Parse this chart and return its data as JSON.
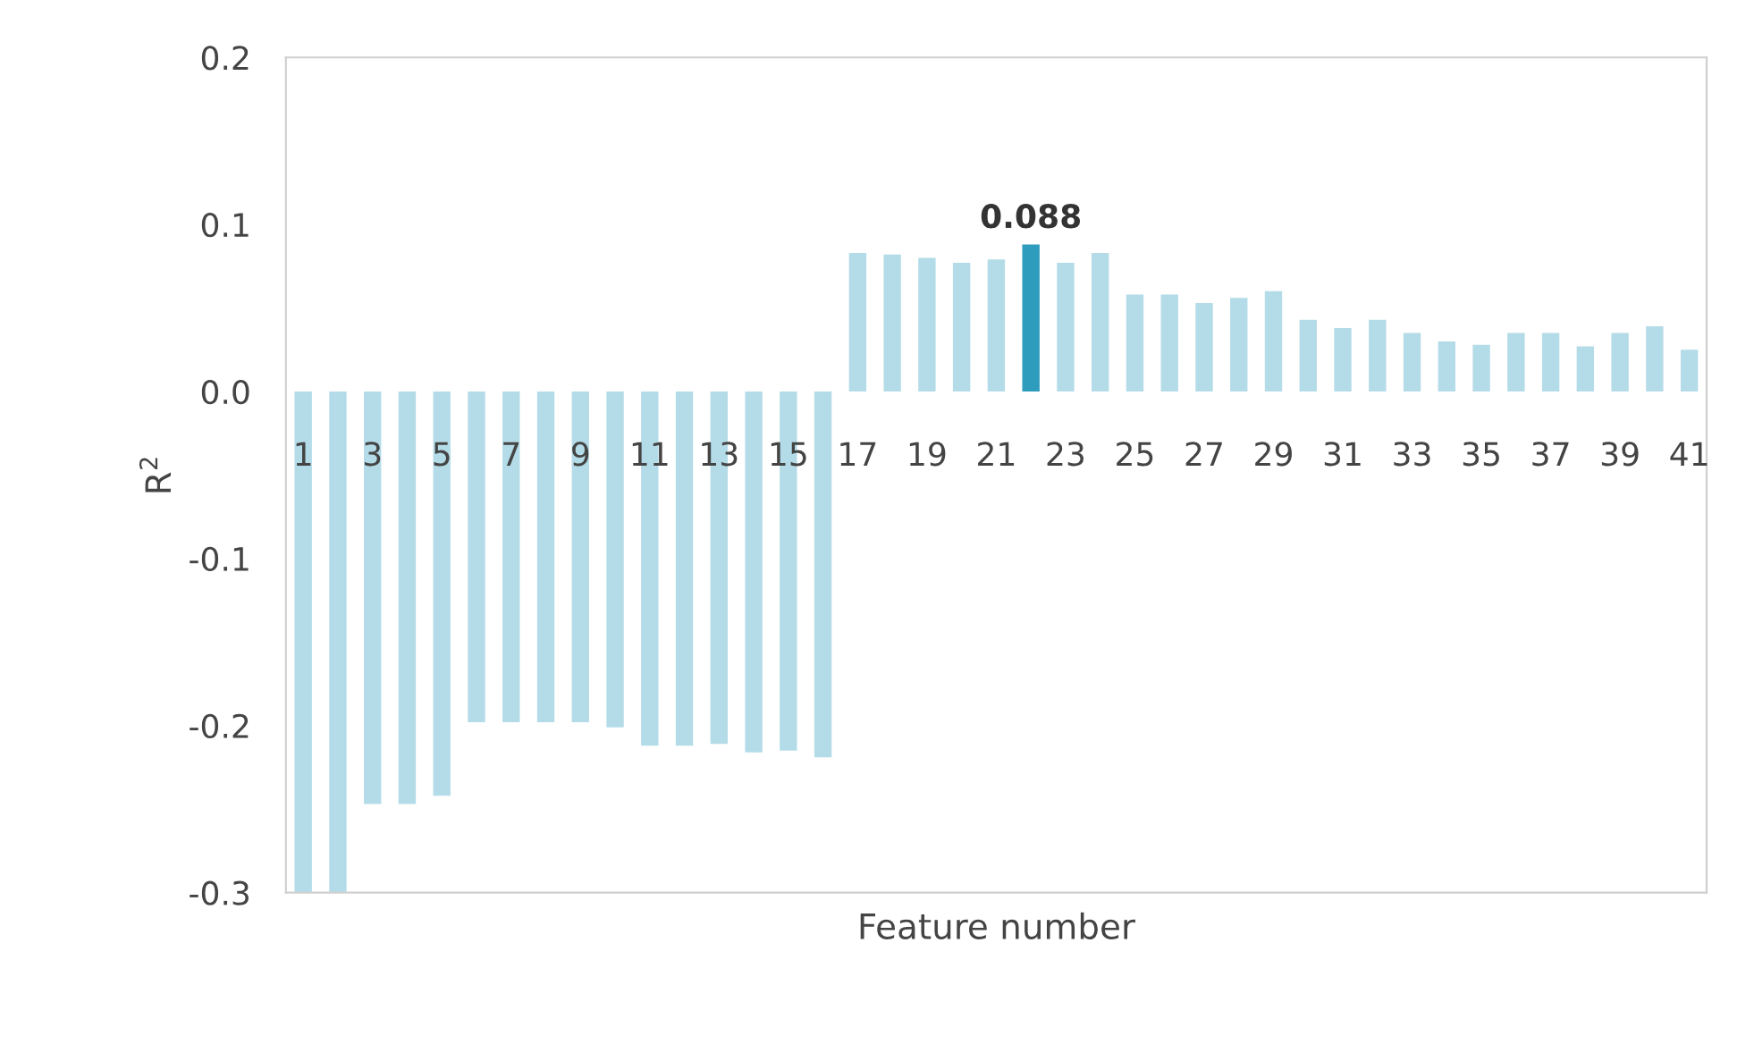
{
  "chart_data": {
    "type": "bar",
    "xlabel": "Feature number",
    "ylabel": "R$^{2}$",
    "categories": [
      "1",
      null,
      "3",
      null,
      "5",
      null,
      "7",
      null,
      "9",
      null,
      "11",
      null,
      "13",
      null,
      "15",
      null,
      "17",
      null,
      "19",
      null,
      "21",
      null,
      "23",
      null,
      "25",
      null,
      "27",
      null,
      "29",
      null,
      "31",
      null,
      "33",
      null,
      "35",
      null,
      "37",
      null,
      "39",
      null,
      "41"
    ],
    "values": [
      -0.3,
      -0.3,
      -0.247,
      -0.247,
      -0.242,
      -0.198,
      -0.198,
      -0.198,
      -0.198,
      -0.201,
      -0.212,
      -0.212,
      -0.211,
      -0.216,
      -0.215,
      -0.219,
      0.083,
      0.082,
      0.08,
      0.077,
      0.079,
      0.088,
      0.077,
      0.083,
      0.058,
      0.058,
      0.053,
      0.056,
      0.06,
      0.043,
      0.038,
      0.043,
      0.035,
      0.03,
      0.028,
      0.035,
      0.035,
      0.027,
      0.035,
      0.039,
      0.025
    ],
    "colors": [
      "#b4dce8",
      "#b4dce8",
      "#b4dce8",
      "#b4dce8",
      "#b4dce8",
      "#b4dce8",
      "#b4dce8",
      "#b4dce8",
      "#b4dce8",
      "#b4dce8",
      "#b4dce8",
      "#b4dce8",
      "#b4dce8",
      "#b4dce8",
      "#b4dce8",
      "#b4dce8",
      "#b4dce8",
      "#b4dce8",
      "#b4dce8",
      "#b4dce8",
      "#b4dce8",
      "#2e9cbc",
      "#b4dce8",
      "#b4dce8",
      "#b4dce8",
      "#b4dce8",
      "#b4dce8",
      "#b4dce8",
      "#b4dce8",
      "#b4dce8",
      "#b4dce8",
      "#b4dce8",
      "#b4dce8",
      "#b4dce8",
      "#b4dce8",
      "#b4dce8",
      "#b4dce8",
      "#b4dce8",
      "#b4dce8",
      "#b4dce8",
      "#b4dce8"
    ],
    "value_labels": [
      null,
      null,
      null,
      null,
      null,
      null,
      null,
      null,
      null,
      null,
      null,
      null,
      null,
      null,
      null,
      null,
      null,
      null,
      null,
      null,
      null,
      "0.088",
      null,
      null,
      null,
      null,
      null,
      null,
      null,
      null,
      null,
      null,
      null,
      null,
      null,
      null,
      null,
      null,
      null,
      null,
      null
    ],
    "ylim": [
      -0.3,
      0.2
    ],
    "yticks": [
      {
        "value": 0.2,
        "label": "0.2"
      },
      {
        "value": 0.1,
        "label": "0.1"
      },
      {
        "value": 0.0,
        "label": "0.0"
      },
      {
        "value": -0.1,
        "label": "-0.1"
      },
      {
        "value": -0.2,
        "label": "-0.2"
      },
      {
        "value": -0.3,
        "label": "-0.3"
      }
    ],
    "grid": false
  }
}
